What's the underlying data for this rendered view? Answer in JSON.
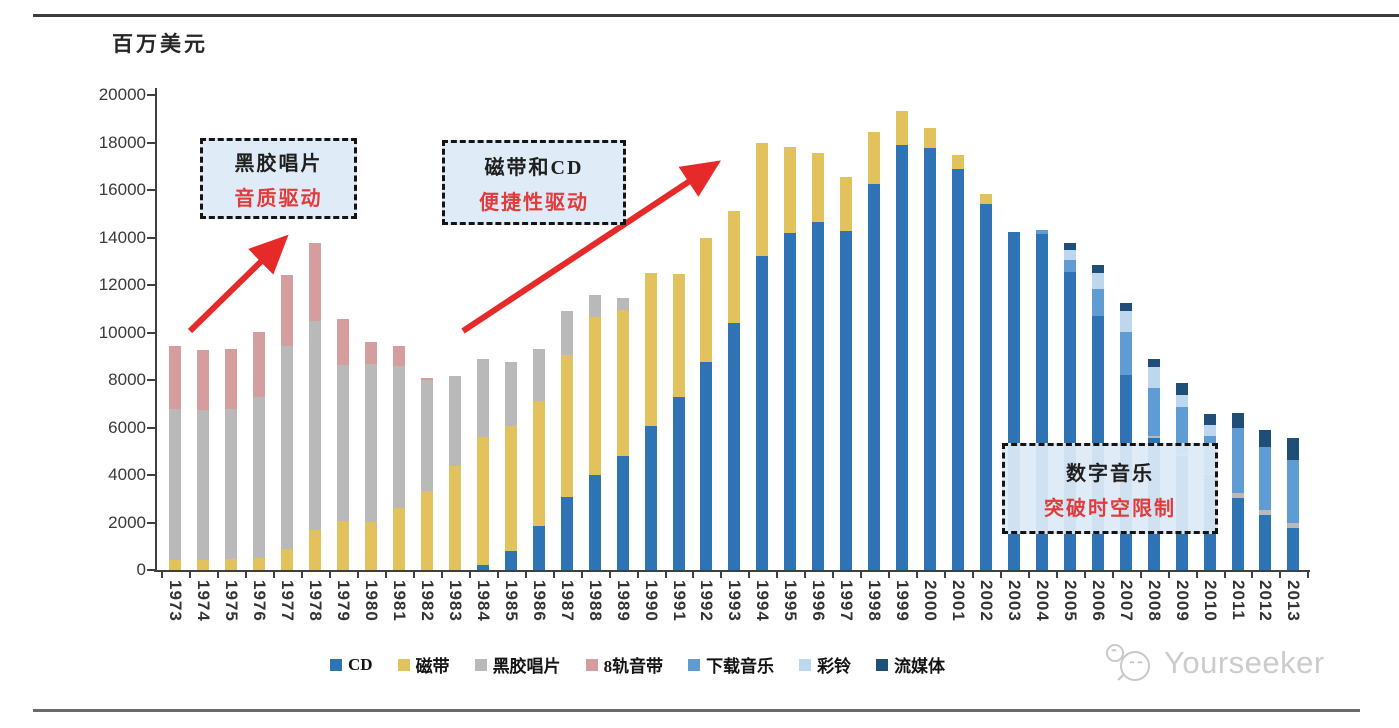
{
  "page": {
    "unit_label": "百万美元",
    "watermark_text": "Yourseeker"
  },
  "annotations": {
    "box1": {
      "line1": "黑胶唱片",
      "line2": "音质驱动"
    },
    "box2": {
      "line1": "磁带和CD",
      "line2": "便捷性驱动"
    },
    "box3": {
      "line1": "数字音乐",
      "line2": "突破时空限制"
    }
  },
  "chart_data": {
    "type": "bar",
    "stacked": true,
    "title": "",
    "ylabel": "百万美元",
    "unit": "million USD",
    "ylim": [
      0,
      20000
    ],
    "ytick_step": 2000,
    "grid": false,
    "legend_position": "bottom",
    "categories": [
      1973,
      1974,
      1975,
      1976,
      1977,
      1978,
      1979,
      1980,
      1981,
      1982,
      1983,
      1984,
      1985,
      1986,
      1987,
      1988,
      1989,
      1990,
      1991,
      1992,
      1993,
      1994,
      1995,
      1996,
      1997,
      1998,
      1999,
      2000,
      2001,
      2002,
      2003,
      2004,
      2005,
      2006,
      2007,
      2008,
      2009,
      2010,
      2011,
      2012,
      2013
    ],
    "series": [
      {
        "name": "CD",
        "color": "#2E74B5",
        "values": [
          0,
          0,
          0,
          0,
          0,
          0,
          0,
          0,
          0,
          0,
          0,
          200,
          790,
          1860,
          3070,
          3990,
          4780,
          6070,
          7280,
          8760,
          10380,
          13210,
          14180,
          14640,
          14290,
          16240,
          17880,
          17760,
          16900,
          15430,
          14230,
          14150,
          12530,
          10700,
          8210,
          5560,
          4800,
          4000,
          3020,
          2320,
          1760
        ]
      },
      {
        "name": "磁带",
        "color": "#E2C25C",
        "values": [
          420,
          420,
          460,
          500,
          890,
          1680,
          2070,
          2040,
          2620,
          3320,
          4360,
          5410,
          5280,
          5240,
          5970,
          6660,
          6180,
          6420,
          5170,
          5230,
          4720,
          4750,
          3610,
          2920,
          2250,
          2190,
          1440,
          840,
          560,
          420,
          0,
          0,
          0,
          0,
          0,
          0,
          0,
          0,
          0,
          0,
          0
        ]
      },
      {
        "name": "黑胶唱片",
        "color": "#B9B9B9",
        "values": [
          6360,
          6320,
          6310,
          6800,
          8540,
          8790,
          6560,
          6630,
          5950,
          4680,
          3820,
          3270,
          2690,
          2220,
          1850,
          930,
          490,
          0,
          0,
          0,
          0,
          0,
          0,
          0,
          0,
          0,
          0,
          0,
          0,
          0,
          0,
          0,
          0,
          0,
          0,
          90,
          90,
          90,
          230,
          210,
          210
        ]
      },
      {
        "name": "8轨音带",
        "color": "#D49E9E",
        "values": [
          2650,
          2520,
          2520,
          2730,
          3000,
          3290,
          1940,
          930,
          860,
          100,
          0,
          0,
          0,
          0,
          0,
          0,
          0,
          0,
          0,
          0,
          0,
          0,
          0,
          0,
          0,
          0,
          0,
          0,
          0,
          0,
          0,
          0,
          0,
          0,
          0,
          0,
          0,
          0,
          0,
          0,
          0
        ]
      },
      {
        "name": "下载音乐",
        "color": "#5E9CD3",
        "values": [
          0,
          0,
          0,
          0,
          0,
          0,
          0,
          0,
          0,
          0,
          0,
          0,
          0,
          0,
          0,
          0,
          0,
          0,
          0,
          0,
          0,
          0,
          0,
          0,
          0,
          0,
          0,
          0,
          0,
          0,
          0,
          150,
          510,
          1150,
          1820,
          2000,
          1990,
          1550,
          2710,
          2660,
          2660
        ]
      },
      {
        "name": "彩铃",
        "color": "#BDD7EE",
        "values": [
          0,
          0,
          0,
          0,
          0,
          0,
          0,
          0,
          0,
          0,
          0,
          0,
          0,
          0,
          0,
          0,
          0,
          0,
          0,
          0,
          0,
          0,
          0,
          0,
          0,
          0,
          0,
          0,
          0,
          0,
          0,
          0,
          420,
          640,
          860,
          880,
          490,
          465,
          0,
          0,
          0
        ]
      },
      {
        "name": "流媒体",
        "color": "#1F4E79",
        "values": [
          0,
          0,
          0,
          0,
          0,
          0,
          0,
          0,
          0,
          0,
          0,
          0,
          0,
          0,
          0,
          0,
          0,
          0,
          0,
          0,
          0,
          0,
          0,
          0,
          0,
          0,
          0,
          0,
          0,
          0,
          0,
          0,
          320,
          360,
          345,
          340,
          490,
          465,
          635,
          700,
          915
        ]
      }
    ]
  }
}
